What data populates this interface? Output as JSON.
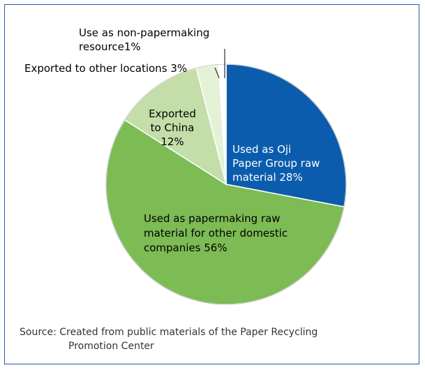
{
  "chart_data": {
    "type": "pie",
    "slices": [
      {
        "label": "Used as Oji Paper Group raw material 28%",
        "value": 28,
        "color": "#0b5cad"
      },
      {
        "label": "Used as papermaking raw material for other domestic companies 56%",
        "value": 56,
        "color": "#7dbb55"
      },
      {
        "label": "Exported to China 12%",
        "value": 12,
        "color": "#c3dea8"
      },
      {
        "label": "Exported to other locations 3%",
        "value": 3,
        "color": "#e4f1d6"
      },
      {
        "label": "Use as non-papermaking resource1%",
        "value": 1,
        "color": "#ffffff"
      }
    ]
  },
  "labels": {
    "oji": [
      "Used as Oji",
      "Paper Group raw",
      "material 28%"
    ],
    "domestic": [
      "Used as papermaking raw",
      "material for other domestic",
      "companies 56%"
    ],
    "china": [
      "Exported",
      "to China",
      "12%"
    ],
    "other": "Exported to other locations 3%",
    "nonpaper": [
      "Use as non-papermaking",
      "resource1%"
    ]
  },
  "source": {
    "prefix": "Source:",
    "line1": "Created from public materials of the Paper Recycling",
    "line2": "Promotion Center"
  }
}
